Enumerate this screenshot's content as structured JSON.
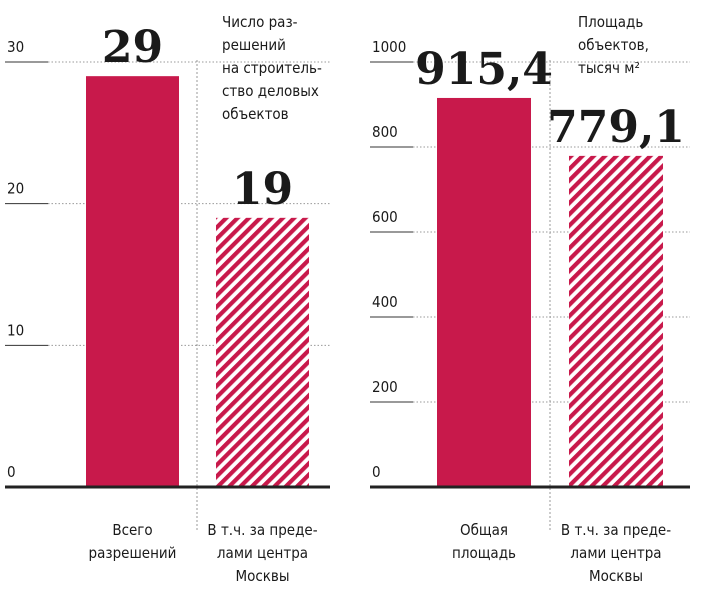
{
  "chart_data": [
    {
      "type": "bar",
      "title": "Число раз-\nрешений\nна строитель-\nство деловых\nобъектов",
      "categories": [
        "Всего\nразрешений",
        "В т.ч. за преде-\nлами центра\nМосквы"
      ],
      "values": [
        29,
        19
      ],
      "value_labels": [
        "29",
        "19"
      ],
      "color": "#c8194b",
      "hatched": [
        false,
        true
      ],
      "ylim": [
        0,
        30
      ],
      "yticks": [
        0,
        10,
        20,
        30
      ],
      "grid": true
    },
    {
      "type": "bar",
      "title": "Площадь\nобъектов,\nтысяч м²",
      "categories": [
        "Общая\nплощадь",
        "В т.ч. за преде-\nлами центра\nМосквы"
      ],
      "values": [
        915.4,
        779.1
      ],
      "value_labels": [
        "915,4",
        "779,1"
      ],
      "color": "#c8194b",
      "hatched": [
        false,
        true
      ],
      "ylim": [
        0,
        1000
      ],
      "yticks": [
        0,
        200,
        400,
        600,
        800,
        1000
      ],
      "grid": true
    }
  ]
}
